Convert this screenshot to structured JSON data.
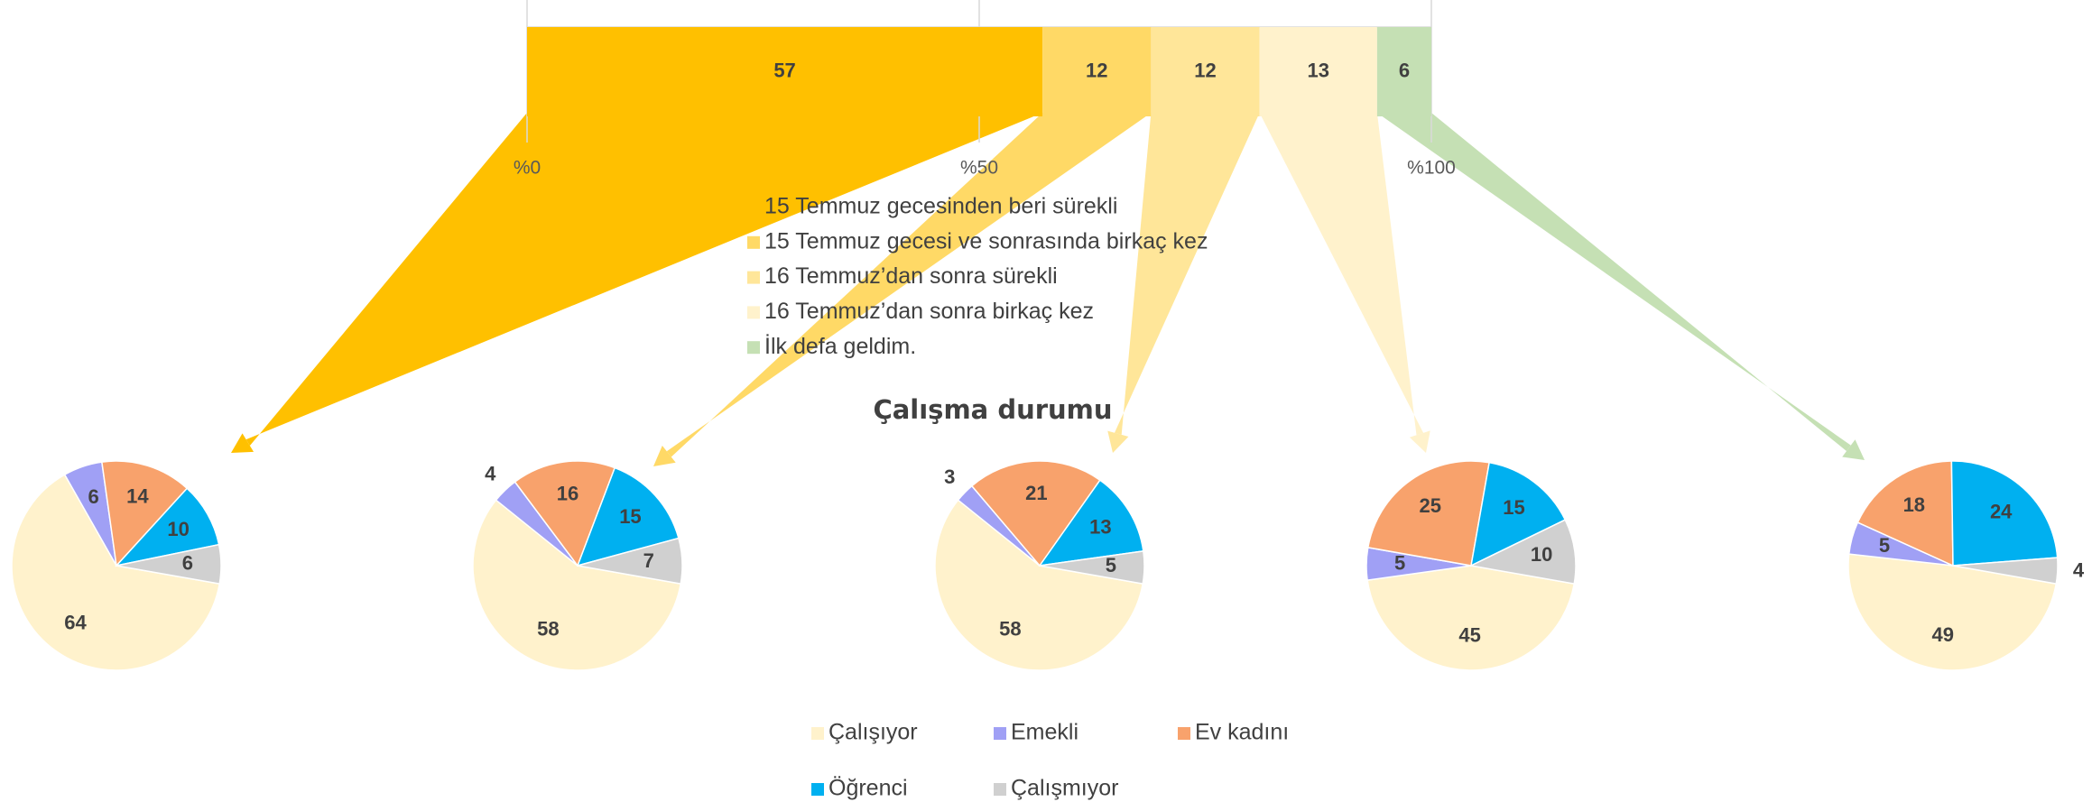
{
  "chart_data": [
    {
      "type": "bar",
      "orientation": "horizontal",
      "stacked": true,
      "series": [
        {
          "name": "15 Temmuz gecesinden beri sürekli",
          "color": "#FFC000",
          "values": [
            57
          ]
        },
        {
          "name": "15 Temmuz gecesi ve sonrasında birkaç kez",
          "color": "#FFD966",
          "values": [
            12
          ]
        },
        {
          "name": "16 Temmuz’dan sonra sürekli",
          "color": "#FFE699",
          "values": [
            12
          ]
        },
        {
          "name": "16 Temmuz’dan sonra birkaç kez",
          "color": "#FFF2CC",
          "values": [
            13
          ]
        },
        {
          "name": "İlk defa geldim.",
          "color": "#C5E0B4",
          "values": [
            6
          ]
        }
      ],
      "xlim": [
        0,
        100
      ],
      "xticks": [
        {
          "value": 0,
          "label": "%0"
        },
        {
          "value": 50,
          "label": "%50"
        },
        {
          "value": 100,
          "label": "%100"
        }
      ],
      "grid": true
    },
    {
      "type": "pie",
      "title": "Çalışma durumu",
      "categories": [
        "Çalışıyor",
        "Emekli",
        "Ev kadını",
        "Öğrenci",
        "Çalışmıyor"
      ],
      "colors": [
        "#FFF2CC",
        "#A0A0F5",
        "#F8A26C",
        "#00B0F0",
        "#D0D0D0"
      ],
      "series": [
        {
          "values": [
            64,
            6,
            14,
            10,
            6
          ]
        },
        {
          "values": [
            58,
            4,
            16,
            15,
            7
          ]
        },
        {
          "values": [
            58,
            3,
            21,
            13,
            5
          ]
        },
        {
          "values": [
            45,
            5,
            25,
            15,
            10
          ]
        },
        {
          "values": [
            49,
            5,
            18,
            24,
            4
          ]
        }
      ]
    }
  ]
}
